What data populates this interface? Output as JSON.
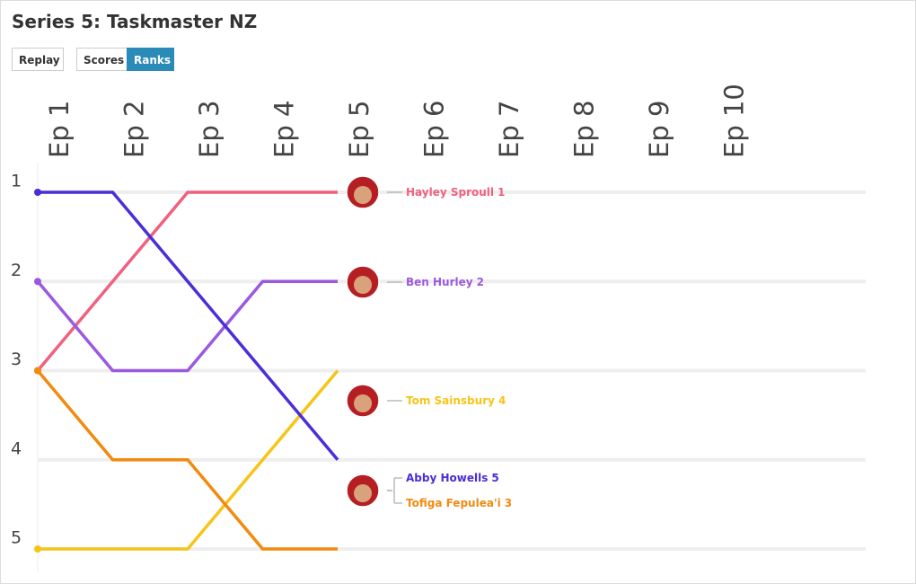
{
  "header": {
    "title": "Series 5: Taskmaster NZ"
  },
  "controls": {
    "replay": "Replay",
    "modes": [
      "Scores",
      "Ranks"
    ],
    "active_mode": 1
  },
  "chart_data": {
    "type": "bump",
    "categories": [
      "Ep 1",
      "Ep 2",
      "Ep 3",
      "Ep 4",
      "Ep 5",
      "Ep 6",
      "Ep 7",
      "Ep 8",
      "Ep 9",
      "Ep 10"
    ],
    "ylim": [
      1,
      5
    ],
    "yticks": [
      1,
      2,
      3,
      4,
      5
    ],
    "y_inverted": true,
    "grid": true,
    "series": [
      {
        "name": "Hayley Sproull",
        "end_label": "1",
        "color": "#f0617f",
        "values": [
          3,
          2,
          1,
          1,
          1,
          null,
          null,
          null,
          null,
          null
        ]
      },
      {
        "name": "Ben Hurley",
        "end_label": "2",
        "color": "#9b59e0",
        "values": [
          2,
          3,
          3,
          2,
          2,
          null,
          null,
          null,
          null,
          null
        ]
      },
      {
        "name": "Tom Sainsbury",
        "end_label": "4",
        "color": "#f5c518",
        "values": [
          5,
          5,
          5,
          4,
          3,
          null,
          null,
          null,
          null,
          null
        ]
      },
      {
        "name": "Abby Howells",
        "end_label": "5",
        "color": "#4a2ed8",
        "values": [
          1,
          1,
          2,
          3,
          4,
          null,
          null,
          null,
          null,
          null
        ]
      },
      {
        "name": "Tofiga Fepulea'i",
        "end_label": "3",
        "color": "#f28a0f",
        "values": [
          3,
          4,
          4,
          5,
          5,
          null,
          null,
          null,
          null,
          null
        ]
      }
    ]
  }
}
